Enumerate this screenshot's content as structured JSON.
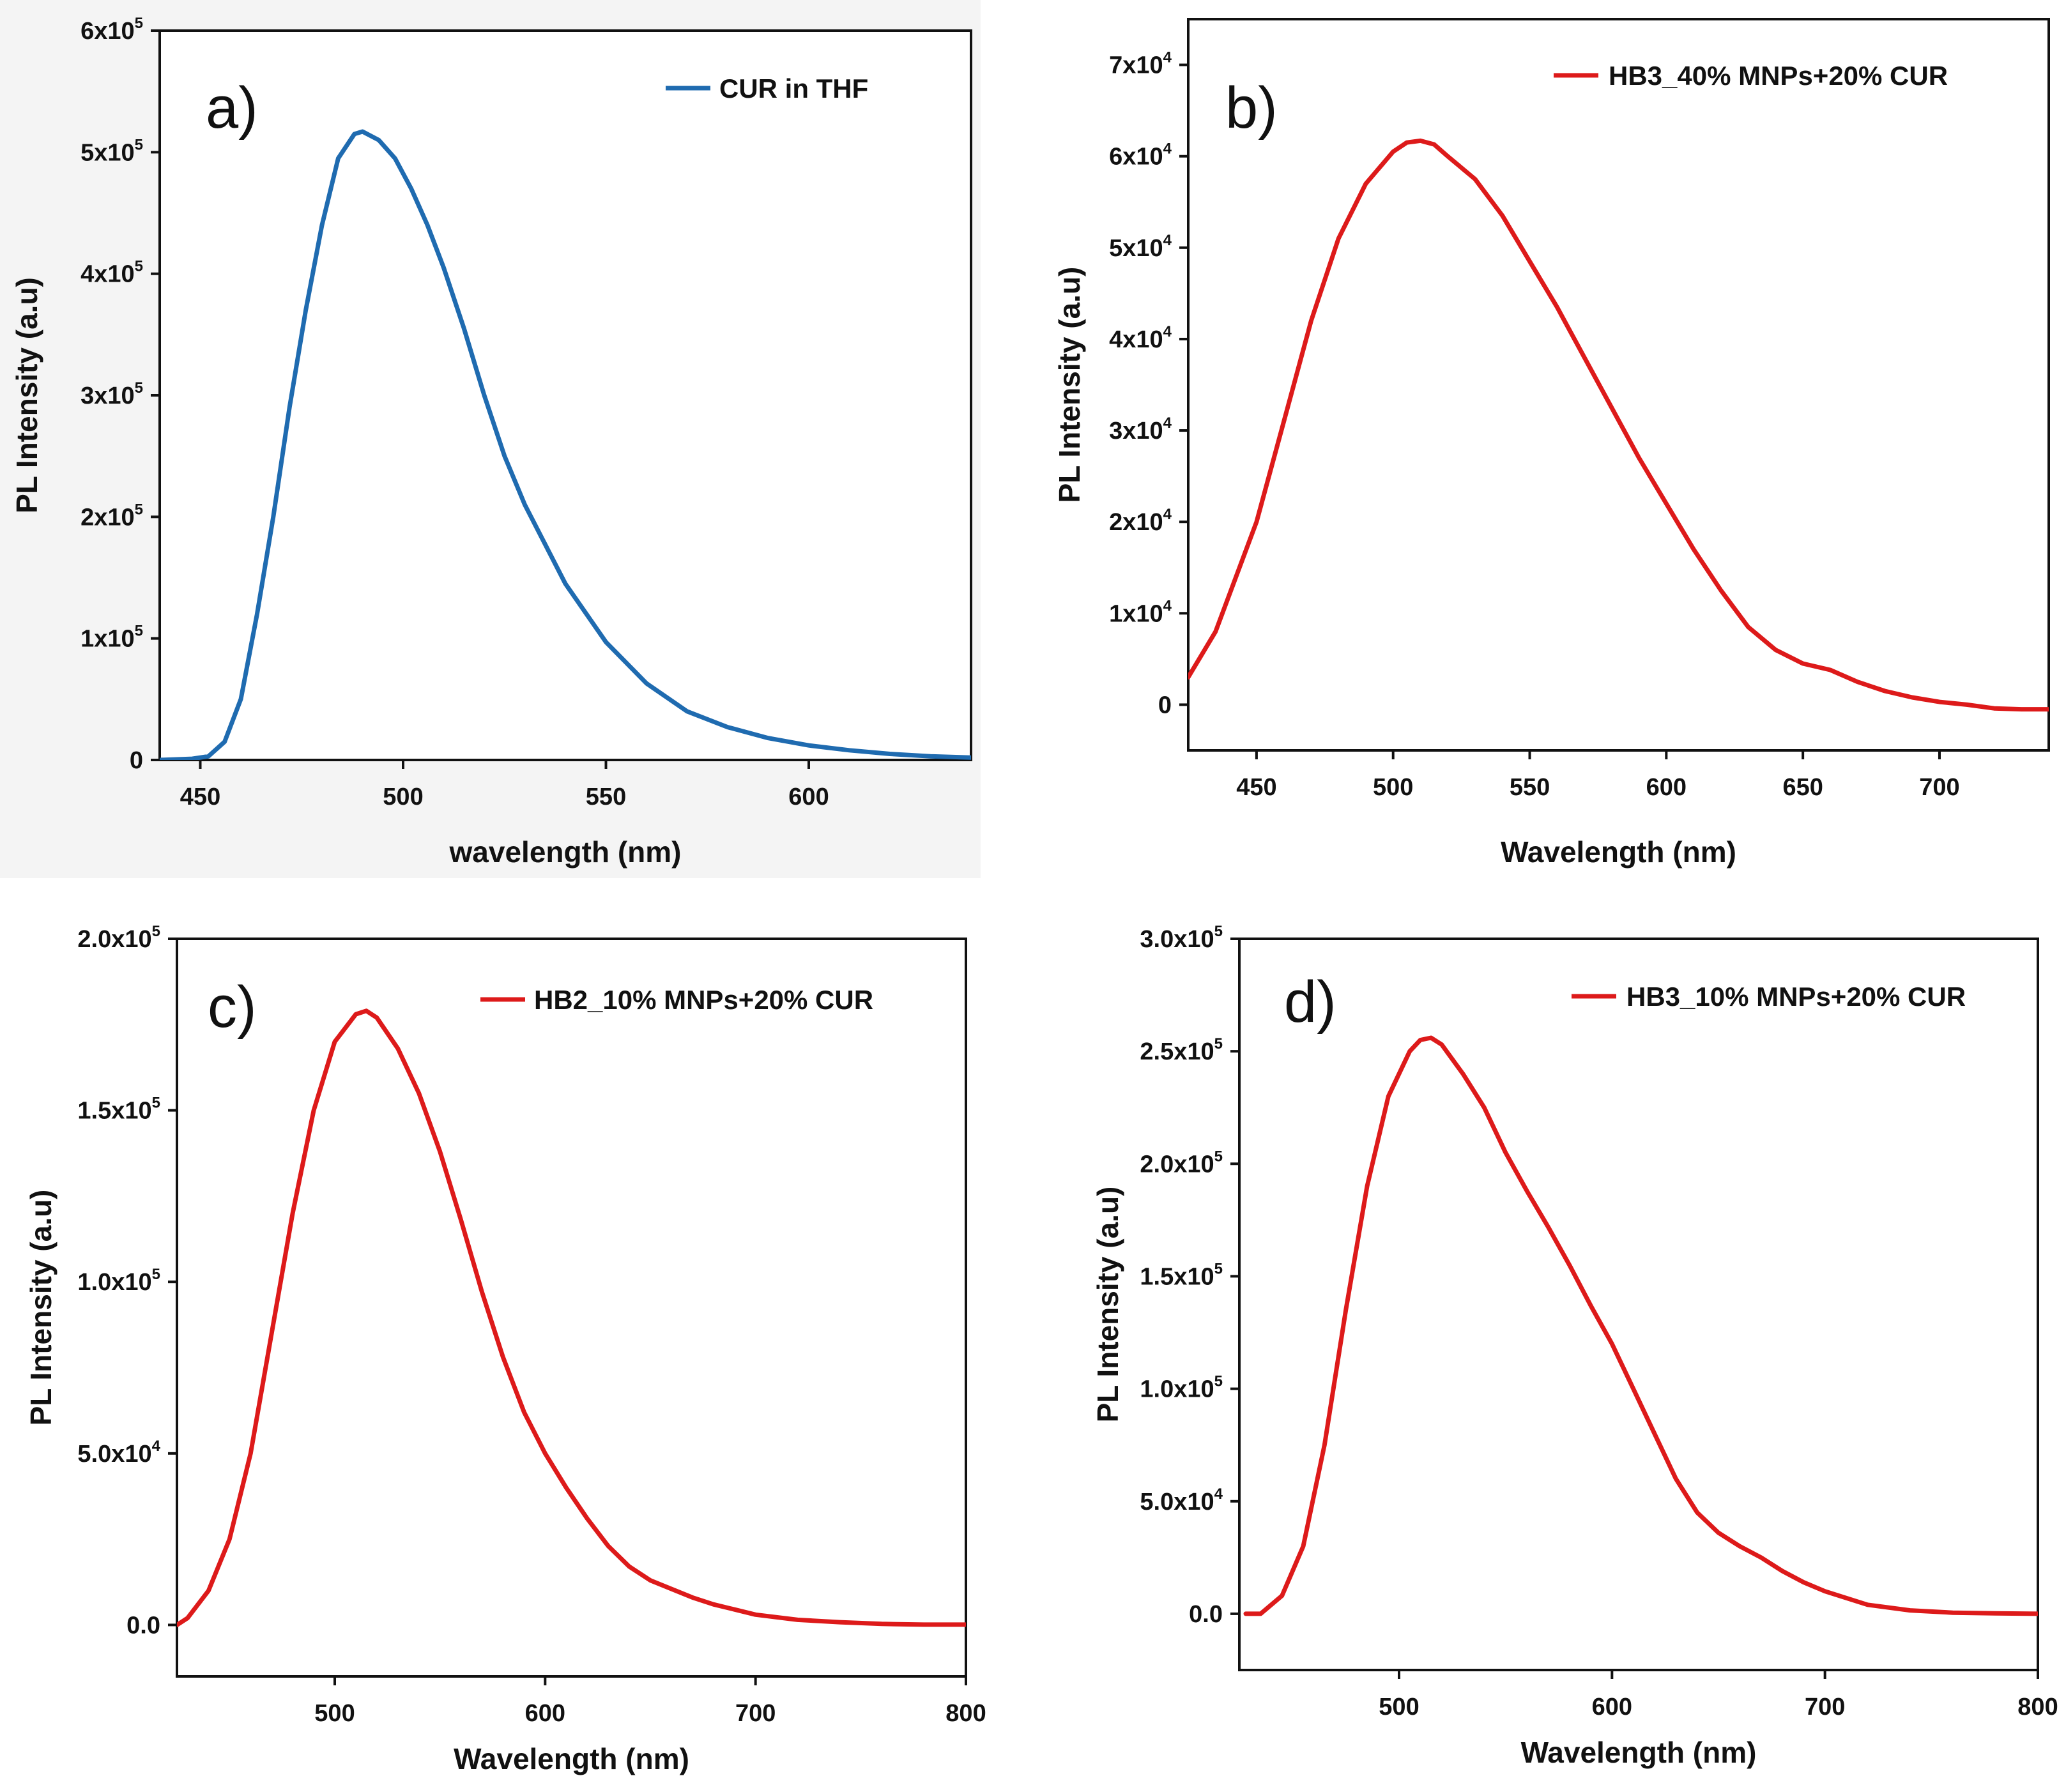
{
  "chart_data": [
    {
      "panel": "a)",
      "type": "line",
      "xlabel": "wavelength (nm)",
      "ylabel": "PL Intensity (a.u)",
      "xlim": [
        440,
        640
      ],
      "ylim": [
        0,
        600000
      ],
      "x_ticks": [
        450,
        500,
        550,
        600
      ],
      "y_ticks": [
        {
          "v": 0,
          "m": "0",
          "e": ""
        },
        {
          "v": 100000,
          "m": "1x10",
          "e": "5"
        },
        {
          "v": 200000,
          "m": "2x10",
          "e": "5"
        },
        {
          "v": 300000,
          "m": "3x10",
          "e": "5"
        },
        {
          "v": 400000,
          "m": "4x10",
          "e": "5"
        },
        {
          "v": 500000,
          "m": "5x10",
          "e": "5"
        },
        {
          "v": 600000,
          "m": "6x10",
          "e": "5"
        }
      ],
      "color": "#1f6bb0",
      "series": [
        {
          "name": "CUR in THF",
          "x": [
            440,
            448,
            452,
            456,
            460,
            464,
            468,
            472,
            476,
            480,
            484,
            488,
            490,
            494,
            498,
            502,
            506,
            510,
            515,
            520,
            525,
            530,
            540,
            550,
            560,
            570,
            580,
            590,
            600,
            610,
            620,
            630,
            640
          ],
          "y": [
            0,
            1000,
            3000,
            15000,
            50000,
            120000,
            200000,
            290000,
            370000,
            440000,
            495000,
            515000,
            517000,
            510000,
            495000,
            470000,
            440000,
            405000,
            355000,
            300000,
            250000,
            210000,
            145000,
            97000,
            63000,
            40000,
            27000,
            18000,
            12000,
            8000,
            5000,
            3000,
            2000
          ]
        }
      ]
    },
    {
      "panel": "b)",
      "type": "line",
      "xlabel": "Wavelength (nm)",
      "ylabel": "PL Intensity (a.u)",
      "xlim": [
        425,
        740
      ],
      "ylim": [
        -5000,
        75000
      ],
      "x_ticks": [
        450,
        500,
        550,
        600,
        650,
        700
      ],
      "y_ticks": [
        {
          "v": 0,
          "m": "0",
          "e": ""
        },
        {
          "v": 10000,
          "m": "1x10",
          "e": "4"
        },
        {
          "v": 20000,
          "m": "2x10",
          "e": "4"
        },
        {
          "v": 30000,
          "m": "3x10",
          "e": "4"
        },
        {
          "v": 40000,
          "m": "4x10",
          "e": "4"
        },
        {
          "v": 50000,
          "m": "5x10",
          "e": "4"
        },
        {
          "v": 60000,
          "m": "6x10",
          "e": "4"
        },
        {
          "v": 70000,
          "m": "7x10",
          "e": "4"
        }
      ],
      "color": "#dd1a1a",
      "series": [
        {
          "name": "HB3_40% MNPs+20% CUR",
          "x": [
            425,
            435,
            450,
            460,
            470,
            480,
            490,
            500,
            505,
            510,
            515,
            520,
            530,
            540,
            550,
            560,
            570,
            580,
            590,
            600,
            610,
            620,
            630,
            640,
            650,
            660,
            670,
            680,
            690,
            700,
            710,
            720,
            730,
            740
          ],
          "y": [
            3000,
            8000,
            20000,
            31000,
            42000,
            51000,
            57000,
            60500,
            61500,
            61700,
            61300,
            60000,
            57500,
            53500,
            48500,
            43500,
            38000,
            32500,
            27000,
            22000,
            17000,
            12500,
            8500,
            6000,
            4500,
            3800,
            2500,
            1500,
            800,
            300,
            0,
            -400,
            -500,
            -500
          ]
        }
      ]
    },
    {
      "panel": "c)",
      "type": "line",
      "xlabel": "Wavelength (nm)",
      "ylabel": "PL Intensity (a.u)",
      "xlim": [
        425,
        800
      ],
      "ylim": [
        -15000,
        200000
      ],
      "x_ticks": [
        500,
        600,
        700,
        800
      ],
      "y_ticks": [
        {
          "v": 0,
          "m": "0.0",
          "e": ""
        },
        {
          "v": 50000,
          "m": "5.0x10",
          "e": "4"
        },
        {
          "v": 100000,
          "m": "1.0x10",
          "e": "5"
        },
        {
          "v": 150000,
          "m": "1.5x10",
          "e": "5"
        },
        {
          "v": 200000,
          "m": "2.0x10",
          "e": "5"
        }
      ],
      "color": "#dd1a1a",
      "series": [
        {
          "name": "HB2_10% MNPs+20% CUR",
          "x": [
            425,
            430,
            440,
            450,
            460,
            470,
            480,
            490,
            500,
            510,
            515,
            520,
            530,
            540,
            550,
            560,
            570,
            580,
            590,
            600,
            610,
            620,
            630,
            640,
            650,
            660,
            670,
            680,
            690,
            700,
            720,
            740,
            760,
            780,
            800
          ],
          "y": [
            0,
            2000,
            10000,
            25000,
            50000,
            85000,
            120000,
            150000,
            170000,
            178000,
            179000,
            177000,
            168000,
            155000,
            138000,
            118000,
            97000,
            78000,
            62000,
            50000,
            40000,
            31000,
            23000,
            17000,
            13000,
            10500,
            8000,
            6000,
            4500,
            3000,
            1500,
            800,
            300,
            100,
            100
          ]
        }
      ]
    },
    {
      "panel": "d)",
      "type": "line",
      "xlabel": "Wavelength (nm)",
      "ylabel": "PL Intensity (a.u)",
      "xlim": [
        425,
        800
      ],
      "ylim": [
        -25000,
        300000
      ],
      "x_ticks": [
        500,
        600,
        700,
        800
      ],
      "y_ticks": [
        {
          "v": 0,
          "m": "0.0",
          "e": ""
        },
        {
          "v": 50000,
          "m": "5.0x10",
          "e": "4"
        },
        {
          "v": 100000,
          "m": "1.0x10",
          "e": "5"
        },
        {
          "v": 150000,
          "m": "1.5x10",
          "e": "5"
        },
        {
          "v": 200000,
          "m": "2.0x10",
          "e": "5"
        },
        {
          "v": 250000,
          "m": "2.5x10",
          "e": "5"
        },
        {
          "v": 300000,
          "m": "3.0x10",
          "e": "5"
        }
      ],
      "color": "#dd1a1a",
      "series": [
        {
          "name": "HB3_10% MNPs+20% CUR",
          "x": [
            428,
            435,
            445,
            455,
            465,
            475,
            485,
            495,
            505,
            510,
            515,
            520,
            530,
            540,
            550,
            560,
            570,
            580,
            590,
            600,
            610,
            620,
            630,
            640,
            650,
            660,
            670,
            680,
            690,
            700,
            720,
            740,
            760,
            780,
            800
          ],
          "y": [
            0,
            0,
            8000,
            30000,
            75000,
            135000,
            190000,
            230000,
            250000,
            255000,
            256000,
            253000,
            240000,
            225000,
            205000,
            188000,
            172000,
            155000,
            137000,
            120000,
            100000,
            80000,
            60000,
            45000,
            36000,
            30000,
            25000,
            19000,
            14000,
            10000,
            4000,
            1500,
            500,
            200,
            0
          ]
        }
      ]
    }
  ]
}
